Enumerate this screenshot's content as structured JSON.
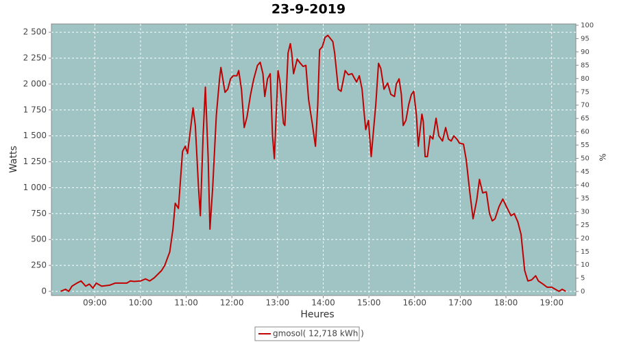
{
  "chart_data": {
    "type": "line",
    "title": "23-9-2019",
    "x_label": "Heures",
    "y_label": "Watts",
    "y2_label": "%",
    "grid": true,
    "plot_background": "#a0c4c4",
    "legend_position": "bottom",
    "xlim": [
      8.05,
      19.53
    ],
    "xticks": [
      {
        "value": 9,
        "label": "09:00"
      },
      {
        "value": 10,
        "label": "10:00"
      },
      {
        "value": 11,
        "label": "11:00"
      },
      {
        "value": 12,
        "label": "12:00"
      },
      {
        "value": 13,
        "label": "13:00"
      },
      {
        "value": 14,
        "label": "14:00"
      },
      {
        "value": 15,
        "label": "15:00"
      },
      {
        "value": 16,
        "label": "16:00"
      },
      {
        "value": 17,
        "label": "17:00"
      },
      {
        "value": 18,
        "label": "18:00"
      },
      {
        "value": 19,
        "label": "19:00"
      }
    ],
    "ylim": [
      -40,
      2580
    ],
    "yticks": [
      0,
      250,
      500,
      750,
      {
        "value": 1000,
        "label": "1 000"
      },
      {
        "value": 1250,
        "label": "1 250"
      },
      {
        "value": 1500,
        "label": "1 500"
      },
      {
        "value": 1750,
        "label": "1 750"
      },
      {
        "value": 2000,
        "label": "2 000"
      },
      {
        "value": 2250,
        "label": "2 250"
      },
      {
        "value": 2500,
        "label": "2 500"
      }
    ],
    "y2lim": [
      -1.5,
      100.5
    ],
    "y2ticks": [
      0,
      5,
      10,
      15,
      20,
      25,
      30,
      35,
      40,
      45,
      50,
      55,
      60,
      65,
      70,
      75,
      80,
      85,
      90,
      95,
      100
    ],
    "x": [
      8.25,
      8.36,
      8.43,
      8.5,
      8.61,
      8.7,
      8.8,
      8.88,
      8.96,
      9.03,
      9.15,
      9.33,
      9.45,
      9.7,
      9.78,
      9.86,
      10.0,
      10.11,
      10.2,
      10.3,
      10.46,
      10.53,
      10.64,
      10.71,
      10.76,
      10.83,
      10.92,
      10.98,
      11.03,
      11.09,
      11.15,
      11.2,
      11.27,
      11.31,
      11.37,
      11.42,
      11.48,
      11.52,
      11.58,
      11.66,
      11.73,
      11.76,
      11.85,
      11.91,
      11.97,
      12.03,
      12.11,
      12.15,
      12.21,
      12.27,
      12.33,
      12.41,
      12.48,
      12.56,
      12.62,
      12.68,
      12.72,
      12.78,
      12.84,
      12.89,
      12.93,
      13.01,
      13.05,
      13.13,
      13.16,
      13.23,
      13.28,
      13.31,
      13.35,
      13.43,
      13.5,
      13.56,
      13.62,
      13.68,
      13.76,
      13.83,
      13.88,
      13.92,
      13.98,
      14.04,
      14.1,
      14.21,
      14.25,
      14.33,
      14.39,
      14.48,
      14.55,
      14.63,
      14.69,
      14.73,
      14.79,
      14.85,
      14.9,
      14.93,
      14.99,
      15.05,
      15.11,
      15.15,
      15.21,
      15.26,
      15.33,
      15.41,
      15.48,
      15.56,
      15.6,
      15.66,
      15.71,
      15.75,
      15.81,
      15.87,
      15.93,
      15.98,
      16.04,
      16.08,
      16.16,
      16.19,
      16.23,
      16.28,
      16.34,
      16.4,
      16.47,
      16.53,
      16.61,
      16.68,
      16.74,
      16.8,
      16.86,
      16.94,
      16.98,
      17.07,
      17.13,
      17.21,
      17.28,
      17.36,
      17.42,
      17.49,
      17.57,
      17.64,
      17.7,
      17.76,
      17.85,
      17.93,
      18.03,
      18.11,
      18.18,
      18.26,
      18.33,
      18.41,
      18.48,
      18.56,
      18.65,
      18.71,
      18.81,
      18.9,
      19.0,
      19.08,
      19.16,
      19.23,
      19.31
    ],
    "series": [
      {
        "name": "gmosol( 12,718 kWh )",
        "color": "#c00000",
        "values": [
          0,
          20,
          0,
          50,
          80,
          100,
          50,
          70,
          30,
          80,
          50,
          60,
          80,
          80,
          100,
          95,
          100,
          120,
          100,
          130,
          200,
          250,
          380,
          600,
          850,
          800,
          1350,
          1400,
          1330,
          1550,
          1770,
          1600,
          1000,
          730,
          1500,
          1970,
          1300,
          600,
          1000,
          1700,
          2050,
          2160,
          1920,
          1950,
          2050,
          2080,
          2080,
          2130,
          1950,
          1580,
          1680,
          1900,
          2050,
          2180,
          2210,
          2100,
          1880,
          2050,
          2100,
          1500,
          1280,
          2130,
          2030,
          1620,
          1600,
          2300,
          2390,
          2300,
          2100,
          2240,
          2200,
          2170,
          2180,
          1850,
          1620,
          1400,
          1800,
          2330,
          2360,
          2450,
          2470,
          2410,
          2300,
          1950,
          1930,
          2130,
          2090,
          2100,
          2050,
          2020,
          2080,
          1950,
          1700,
          1560,
          1650,
          1300,
          1600,
          1800,
          2200,
          2150,
          1950,
          2010,
          1900,
          1880,
          2000,
          2050,
          1900,
          1600,
          1650,
          1800,
          1900,
          1930,
          1700,
          1400,
          1710,
          1640,
          1300,
          1300,
          1500,
          1470,
          1670,
          1500,
          1450,
          1580,
          1470,
          1450,
          1500,
          1460,
          1430,
          1420,
          1270,
          950,
          700,
          880,
          1080,
          950,
          960,
          750,
          680,
          700,
          820,
          890,
          800,
          730,
          750,
          670,
          550,
          200,
          100,
          110,
          150,
          100,
          70,
          40,
          40,
          20,
          0,
          20,
          0
        ]
      }
    ]
  }
}
